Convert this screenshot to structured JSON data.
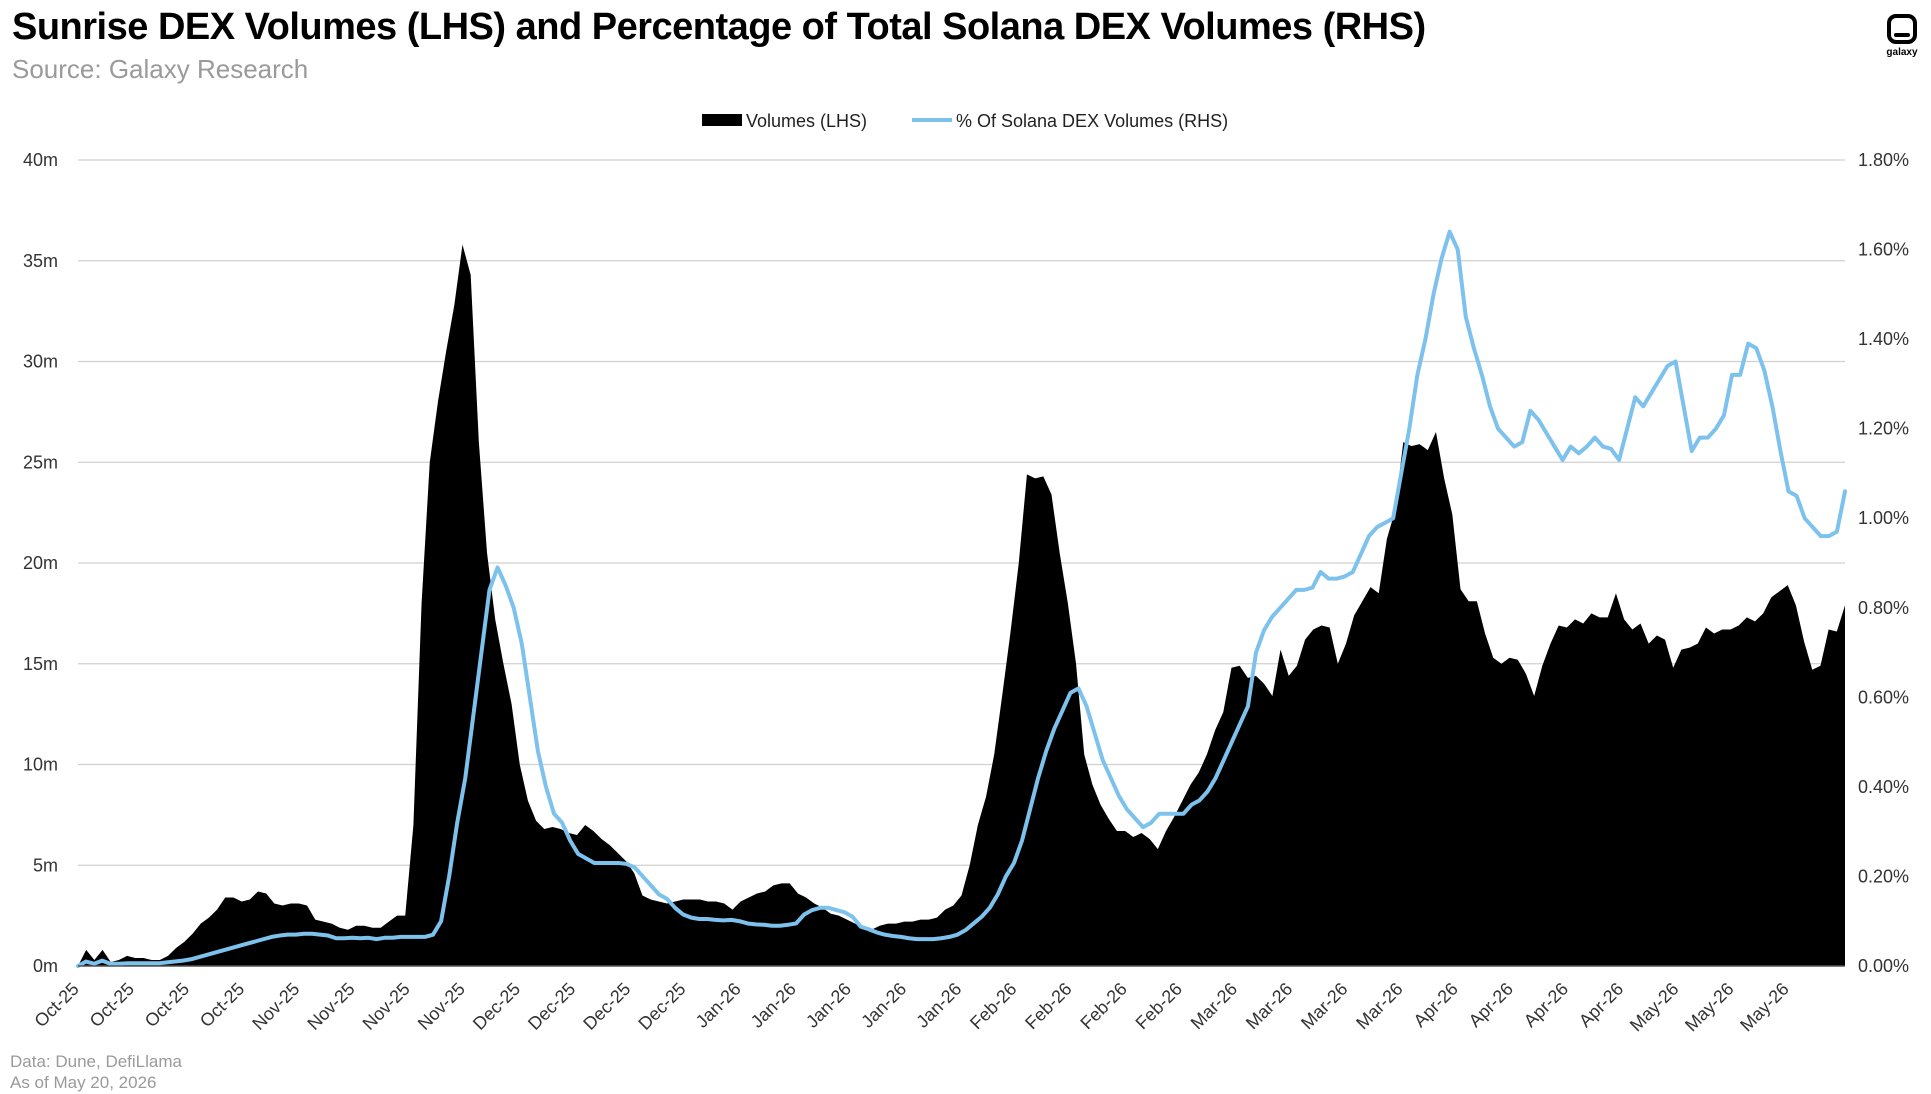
{
  "title": "Sunrise DEX Volumes (LHS) and Percentage of Total Solana DEX Volumes (RHS)",
  "subtitle": "Source: Galaxy Research",
  "logo": {
    "icon": "galaxy-logo-icon",
    "label": "galaxy"
  },
  "footer": {
    "data_source": "Data: Dune, DefiLlama",
    "as_of": "As of May 20, 2026"
  },
  "chart_data": {
    "type": "area+line",
    "legend_position": "top-center",
    "grid": true,
    "y_left": {
      "ticks": [
        "0m",
        "5m",
        "10m",
        "15m",
        "20m",
        "25m",
        "30m",
        "35m",
        "40m"
      ],
      "range": [
        0,
        40
      ]
    },
    "y_right": {
      "ticks": [
        "0.00%",
        "0.20%",
        "0.40%",
        "0.60%",
        "0.80%",
        "1.00%",
        "1.20%",
        "1.40%",
        "1.60%",
        "1.80%"
      ],
      "range": [
        0,
        1.8
      ]
    },
    "x_ticks": [
      "Oct-25",
      "Oct-25",
      "Oct-25",
      "Oct-25",
      "Nov-25",
      "Nov-25",
      "Nov-25",
      "Nov-25",
      "Dec-25",
      "Dec-25",
      "Dec-25",
      "Dec-25",
      "Jan-26",
      "Jan-26",
      "Jan-26",
      "Jan-26",
      "Jan-26",
      "Feb-26",
      "Feb-26",
      "Feb-26",
      "Feb-26",
      "Mar-26",
      "Mar-26",
      "Mar-26",
      "Mar-26",
      "Apr-26",
      "Apr-26",
      "Apr-26",
      "Apr-26",
      "May-26",
      "May-26",
      "May-26"
    ],
    "series": [
      {
        "name": "Volumes (LHS)",
        "type": "area",
        "axis": "left",
        "color": "#000000",
        "values": [
          0.0,
          0.8,
          0.3,
          0.8,
          0.2,
          0.3,
          0.5,
          0.4,
          0.4,
          0.3,
          0.3,
          0.5,
          0.9,
          1.2,
          1.6,
          2.1,
          2.4,
          2.8,
          3.4,
          3.4,
          3.2,
          3.3,
          3.7,
          3.6,
          3.1,
          3.0,
          3.1,
          3.1,
          3.0,
          2.3,
          2.2,
          2.1,
          1.9,
          1.8,
          2.0,
          2.0,
          1.9,
          1.9,
          2.2,
          2.5,
          2.5,
          7.0,
          18.0,
          25.0,
          28.0,
          30.5,
          32.8,
          35.8,
          34.3,
          26.0,
          20.5,
          17.2,
          15.0,
          13.0,
          10.0,
          8.2,
          7.2,
          6.8,
          6.9,
          6.8,
          6.6,
          6.5,
          7.0,
          6.7,
          6.3,
          6.0,
          5.6,
          5.2,
          4.6,
          3.5,
          3.3,
          3.2,
          3.1,
          3.2,
          3.3,
          3.3,
          3.3,
          3.2,
          3.2,
          3.1,
          2.8,
          3.2,
          3.4,
          3.6,
          3.7,
          4.0,
          4.1,
          4.1,
          3.6,
          3.4,
          3.1,
          2.9,
          2.6,
          2.5,
          2.3,
          2.1,
          1.9,
          1.8,
          2.0,
          2.1,
          2.1,
          2.2,
          2.2,
          2.3,
          2.3,
          2.4,
          2.8,
          3.0,
          3.5,
          5.0,
          7.0,
          8.4,
          10.5,
          13.5,
          16.6,
          20.0,
          24.4,
          24.2,
          24.3,
          23.4,
          20.5,
          18.0,
          15.0,
          10.5,
          9.0,
          8.0,
          7.3,
          6.7,
          6.7,
          6.4,
          6.6,
          6.3,
          5.8,
          6.7,
          7.4,
          8.2,
          9.0,
          9.6,
          10.5,
          11.7,
          12.6,
          14.8,
          14.9,
          14.3,
          14.4,
          14.0,
          13.4,
          15.7,
          14.4,
          14.9,
          16.2,
          16.7,
          16.9,
          16.8,
          15.0,
          16.0,
          17.4,
          18.1,
          18.8,
          18.5,
          21.2,
          22.6,
          26.0,
          25.8,
          25.9,
          25.6,
          26.5,
          24.2,
          22.4,
          18.7,
          18.1,
          18.1,
          16.5,
          15.3,
          15.0,
          15.3,
          15.2,
          14.5,
          13.4,
          14.9,
          16.0,
          16.9,
          16.8,
          17.2,
          17.0,
          17.5,
          17.3,
          17.3,
          18.5,
          17.2,
          16.7,
          17.0,
          16.0,
          16.4,
          16.2,
          14.8,
          15.7,
          15.8,
          16.0,
          16.8,
          16.5,
          16.7,
          16.7,
          16.9,
          17.3,
          17.1,
          17.5,
          18.3,
          18.6,
          18.9,
          17.9,
          16.1,
          14.7,
          14.9,
          16.7,
          16.6,
          17.9
        ]
      },
      {
        "name": "% Of Solana DEX Volumes (RHS)",
        "type": "line",
        "axis": "right",
        "color": "#7dc1ed",
        "values": [
          0.0,
          0.01,
          0.005,
          0.012,
          0.005,
          0.005,
          0.006,
          0.006,
          0.006,
          0.006,
          0.006,
          0.008,
          0.01,
          0.012,
          0.015,
          0.02,
          0.025,
          0.03,
          0.035,
          0.04,
          0.045,
          0.05,
          0.055,
          0.06,
          0.065,
          0.068,
          0.07,
          0.07,
          0.072,
          0.072,
          0.07,
          0.068,
          0.062,
          0.062,
          0.063,
          0.062,
          0.063,
          0.06,
          0.063,
          0.063,
          0.065,
          0.065,
          0.065,
          0.065,
          0.07,
          0.1,
          0.2,
          0.32,
          0.42,
          0.56,
          0.7,
          0.84,
          0.89,
          0.85,
          0.8,
          0.72,
          0.6,
          0.48,
          0.4,
          0.34,
          0.32,
          0.28,
          0.25,
          0.24,
          0.23,
          0.23,
          0.23,
          0.23,
          0.228,
          0.22,
          0.2,
          0.18,
          0.16,
          0.15,
          0.13,
          0.115,
          0.108,
          0.105,
          0.105,
          0.103,
          0.102,
          0.103,
          0.1,
          0.095,
          0.093,
          0.092,
          0.09,
          0.09,
          0.092,
          0.095,
          0.115,
          0.125,
          0.13,
          0.13,
          0.125,
          0.12,
          0.11,
          0.088,
          0.082,
          0.075,
          0.07,
          0.067,
          0.065,
          0.062,
          0.06,
          0.06,
          0.06,
          0.062,
          0.065,
          0.07,
          0.08,
          0.095,
          0.11,
          0.13,
          0.16,
          0.2,
          0.23,
          0.28,
          0.35,
          0.42,
          0.48,
          0.53,
          0.57,
          0.61,
          0.62,
          0.58,
          0.52,
          0.46,
          0.42,
          0.38,
          0.35,
          0.33,
          0.31,
          0.32,
          0.34,
          0.34,
          0.34,
          0.34,
          0.36,
          0.37,
          0.39,
          0.42,
          0.46,
          0.5,
          0.54,
          0.58,
          0.7,
          0.75,
          0.78,
          0.8,
          0.82,
          0.84,
          0.84,
          0.845,
          0.88,
          0.865,
          0.865,
          0.87,
          0.88,
          0.92,
          0.96,
          0.98,
          0.99,
          1.0,
          1.1,
          1.2,
          1.32,
          1.4,
          1.5,
          1.58,
          1.64,
          1.6,
          1.45,
          1.38,
          1.32,
          1.25,
          1.2,
          1.18,
          1.16,
          1.17,
          1.24,
          1.22,
          1.19,
          1.16,
          1.13,
          1.16,
          1.145,
          1.16,
          1.18,
          1.16,
          1.155,
          1.13,
          1.2,
          1.27,
          1.25,
          1.28,
          1.31,
          1.34,
          1.35,
          1.25,
          1.15,
          1.18,
          1.18,
          1.2,
          1.23,
          1.32,
          1.32,
          1.39,
          1.38,
          1.33,
          1.25,
          1.15,
          1.06,
          1.05,
          1.0,
          0.98,
          0.96,
          0.96,
          0.97,
          1.06
        ]
      }
    ]
  }
}
